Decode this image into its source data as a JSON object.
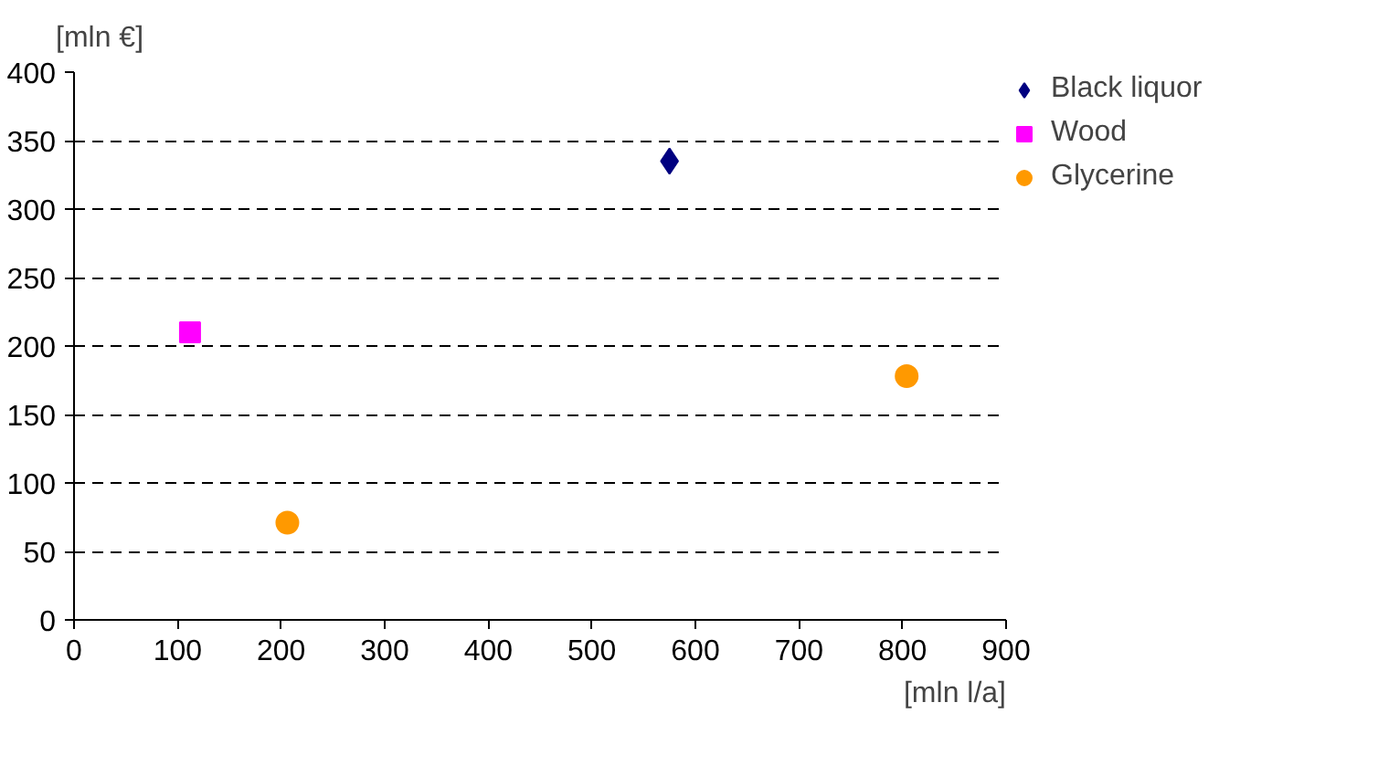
{
  "chart_data": {
    "type": "scatter",
    "xlabel": "[mln l/a]",
    "ylabel": "[mln €]",
    "xlim": [
      0,
      900
    ],
    "xticks": [
      0,
      100,
      200,
      300,
      400,
      500,
      600,
      700,
      800,
      900
    ],
    "ylim": [
      0,
      400
    ],
    "yticks": [
      0,
      50,
      100,
      150,
      200,
      250,
      300,
      350,
      400
    ],
    "grid": "y",
    "legend": "right",
    "series": [
      {
        "name": "Black liquor",
        "color": "#000080",
        "marker": "diamond",
        "x": [
          575
        ],
        "values": [
          335
        ]
      },
      {
        "name": "Wood",
        "color": "#ff00ff",
        "marker": "square",
        "x": [
          112
        ],
        "values": [
          210
        ]
      },
      {
        "name": "Glycerine",
        "color": "#ff9900",
        "marker": "circle",
        "x": [
          206,
          804
        ],
        "values": [
          71,
          178
        ]
      }
    ]
  }
}
